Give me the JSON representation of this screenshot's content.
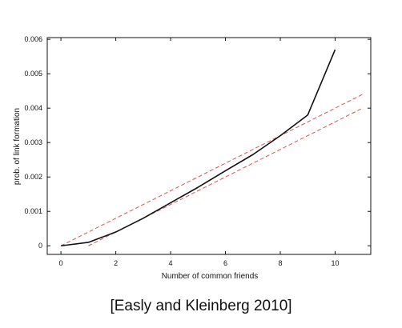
{
  "caption": "[Easly and Kleinberg 2010]",
  "chart_data": {
    "type": "line",
    "title": "",
    "xlabel": "Number of common friends",
    "ylabel": "prob. of link formation",
    "xlim": [
      -0.5,
      11.3
    ],
    "ylim": [
      -0.00025,
      0.00605
    ],
    "x_ticks": [
      0,
      2,
      4,
      6,
      8,
      10
    ],
    "y_ticks": [
      0,
      0.001,
      0.002,
      0.003,
      0.004,
      0.005,
      0.006
    ],
    "x_tick_labels": [
      "0",
      "2",
      "4",
      "6",
      "8",
      "10"
    ],
    "y_tick_labels": [
      "0",
      "0.001",
      "0.002",
      "0.003",
      "0.004",
      "0.005",
      "0.006"
    ],
    "grid": false,
    "legend": "none",
    "series": [
      {
        "style": "solid",
        "color": "#111111",
        "x": [
          0,
          1,
          2,
          3,
          4,
          5,
          6,
          7,
          8,
          9,
          10
        ],
        "y": [
          0.0,
          0.0001,
          0.0004,
          0.0008,
          0.00125,
          0.0017,
          0.00218,
          0.00265,
          0.0032,
          0.0038,
          0.0057
        ]
      },
      {
        "style": "dashed",
        "color": "#d9534f",
        "x": [
          0,
          11
        ],
        "y": [
          0.0,
          0.0044
        ]
      },
      {
        "style": "dashed",
        "color": "#d9534f",
        "x": [
          1,
          11
        ],
        "y": [
          0.0,
          0.004
        ]
      }
    ]
  }
}
